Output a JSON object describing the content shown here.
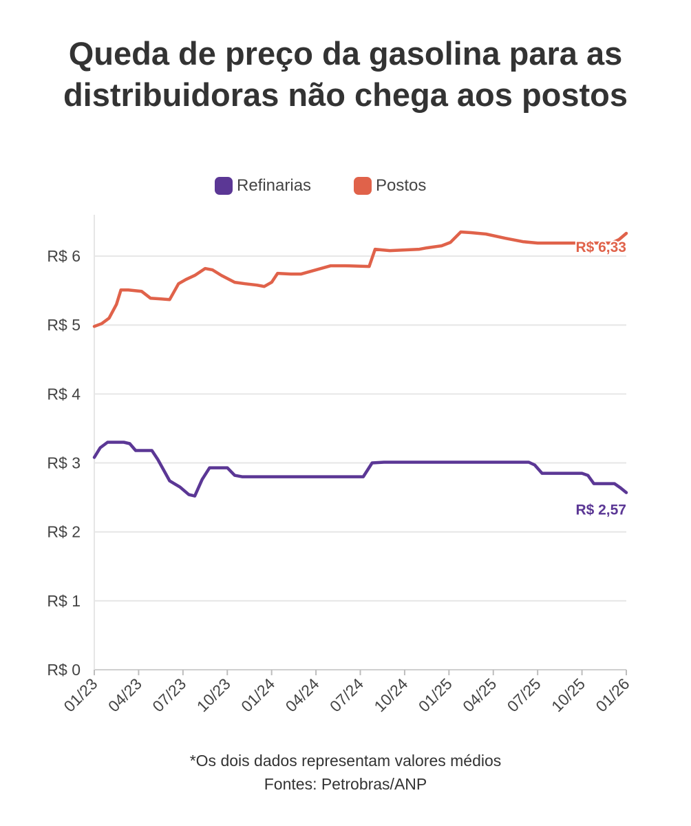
{
  "title": "Queda de preço da gasolina para as distribuidoras não chega aos postos",
  "legend": [
    {
      "label": "Refinarias",
      "color": "#5b3795"
    },
    {
      "label": "Postos",
      "color": "#e0624a"
    }
  ],
  "footnote": "*Os dois dados representam valores médios",
  "source": "Fontes: Petrobras/ANP",
  "chart_data": {
    "type": "line",
    "title": "Queda de preço da gasolina para as distribuidoras não chega aos postos",
    "xlabel": "",
    "ylabel": "",
    "ylim": [
      0,
      6.6
    ],
    "xlim": [
      0,
      36
    ],
    "y_ticks": [
      0,
      1,
      2,
      3,
      4,
      5,
      6
    ],
    "y_tick_labels": [
      "R$ 0",
      "R$ 1",
      "R$ 2",
      "R$ 3",
      "R$ 4",
      "R$ 5",
      "R$ 6"
    ],
    "x_ticks": [
      0,
      3,
      6,
      9,
      12,
      15,
      18,
      21,
      24,
      27,
      30,
      33,
      36
    ],
    "x_tick_labels": [
      "01/23",
      "04/23",
      "07/23",
      "10/23",
      "01/24",
      "04/24",
      "07/24",
      "10/24",
      "01/25",
      "04/25",
      "07/25",
      "10/25",
      "01/26"
    ],
    "grid": "horizontal",
    "legend_position": "top",
    "series": [
      {
        "name": "Postos",
        "color": "#e0624a",
        "end_label": "R$ 6,33",
        "points": [
          [
            0,
            4.98
          ],
          [
            0.5,
            5.02
          ],
          [
            1,
            5.1
          ],
          [
            1.5,
            5.3
          ],
          [
            1.8,
            5.51
          ],
          [
            2.3,
            5.51
          ],
          [
            3.2,
            5.49
          ],
          [
            3.8,
            5.39
          ],
          [
            4.5,
            5.38
          ],
          [
            5.1,
            5.37
          ],
          [
            5.7,
            5.6
          ],
          [
            6.2,
            5.66
          ],
          [
            6.8,
            5.72
          ],
          [
            7.5,
            5.82
          ],
          [
            8,
            5.8
          ],
          [
            8.6,
            5.72
          ],
          [
            9.5,
            5.62
          ],
          [
            10.2,
            5.6
          ],
          [
            11,
            5.58
          ],
          [
            11.5,
            5.56
          ],
          [
            12,
            5.62
          ],
          [
            12.4,
            5.75
          ],
          [
            13.3,
            5.74
          ],
          [
            14,
            5.74
          ],
          [
            15,
            5.8
          ],
          [
            16,
            5.86
          ],
          [
            17,
            5.86
          ],
          [
            18.6,
            5.85
          ],
          [
            19,
            6.1
          ],
          [
            20,
            6.08
          ],
          [
            21,
            6.09
          ],
          [
            22,
            6.1
          ],
          [
            22.5,
            6.12
          ],
          [
            23.5,
            6.15
          ],
          [
            24.1,
            6.2
          ],
          [
            24.8,
            6.35
          ],
          [
            25.5,
            6.34
          ],
          [
            26.5,
            6.32
          ],
          [
            27.8,
            6.26
          ],
          [
            29,
            6.21
          ],
          [
            30,
            6.19
          ],
          [
            31,
            6.19
          ],
          [
            32,
            6.19
          ],
          [
            33,
            6.19
          ],
          [
            34,
            6.19
          ],
          [
            35,
            6.19
          ],
          [
            35.5,
            6.24
          ],
          [
            36,
            6.33
          ]
        ]
      },
      {
        "name": "Refinarias",
        "color": "#5b3795",
        "end_label": "R$ 2,57",
        "points": [
          [
            0,
            3.08
          ],
          [
            0.4,
            3.22
          ],
          [
            0.9,
            3.3
          ],
          [
            2,
            3.3
          ],
          [
            2.4,
            3.28
          ],
          [
            2.8,
            3.18
          ],
          [
            3.9,
            3.18
          ],
          [
            4.3,
            3.05
          ],
          [
            5.1,
            2.74
          ],
          [
            5.8,
            2.65
          ],
          [
            6.4,
            2.54
          ],
          [
            6.8,
            2.52
          ],
          [
            7.3,
            2.76
          ],
          [
            7.8,
            2.93
          ],
          [
            9,
            2.93
          ],
          [
            9.5,
            2.82
          ],
          [
            10,
            2.8
          ],
          [
            12,
            2.8
          ],
          [
            15,
            2.8
          ],
          [
            18.2,
            2.8
          ],
          [
            18.8,
            3.0
          ],
          [
            19.6,
            3.01
          ],
          [
            24,
            3.01
          ],
          [
            29.4,
            3.01
          ],
          [
            29.8,
            2.97
          ],
          [
            30.3,
            2.85
          ],
          [
            33,
            2.85
          ],
          [
            33.4,
            2.82
          ],
          [
            33.8,
            2.7
          ],
          [
            35.2,
            2.7
          ],
          [
            35.6,
            2.64
          ],
          [
            36,
            2.57
          ]
        ]
      }
    ]
  }
}
